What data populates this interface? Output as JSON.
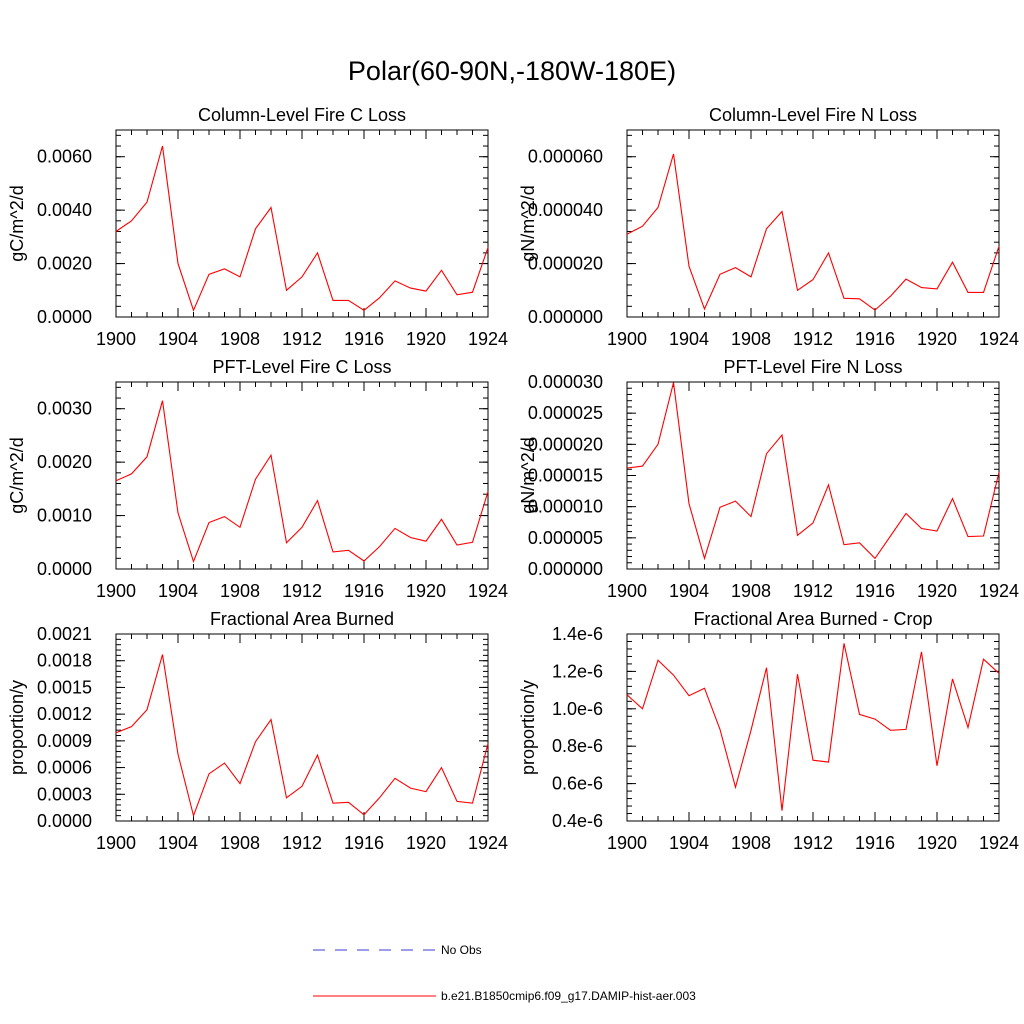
{
  "title": "Polar(60-90N,-180W-180E)",
  "colors": {
    "model_line": "#ff0000",
    "obs_line": "#3b3bd6",
    "axes": "#000000"
  },
  "legend": {
    "obs_label": "No Obs",
    "model_label": "b.e21.B1850cmip6.f09_g17.DAMIP-hist-aer.003"
  },
  "chart_data": [
    {
      "type": "line",
      "title": "Column-Level Fire C Loss",
      "ylabel": "gC/m^2/d",
      "xlim": [
        1900,
        1924
      ],
      "ylim": [
        0,
        0.007
      ],
      "xticks": [
        "1900",
        "1904",
        "1908",
        "1912",
        "1916",
        "1920",
        "1924"
      ],
      "yticks": [
        "0.0000",
        "0.0020",
        "0.0040",
        "0.0060"
      ],
      "x": [
        1900,
        1901,
        1902,
        1903,
        1904,
        1905,
        1906,
        1907,
        1908,
        1909,
        1910,
        1911,
        1912,
        1913,
        1914,
        1915,
        1916,
        1917,
        1918,
        1919,
        1920,
        1921,
        1922,
        1923,
        1924
      ],
      "series": [
        {
          "values": [
            0.0032,
            0.0036,
            0.0043,
            0.0064,
            0.002,
            0.00025,
            0.0016,
            0.0018,
            0.0015,
            0.0033,
            0.0041,
            0.001,
            0.0015,
            0.0024,
            0.00062,
            0.00062,
            0.00025,
            0.00072,
            0.00135,
            0.00108,
            0.00097,
            0.00175,
            0.00083,
            0.00093,
            0.0026
          ]
        }
      ]
    },
    {
      "type": "line",
      "title": "Column-Level Fire N Loss",
      "ylabel": "gN/m^2/d",
      "xlim": [
        1900,
        1924
      ],
      "ylim": [
        0,
        7e-05
      ],
      "xticks": [
        "1900",
        "1904",
        "1908",
        "1912",
        "1916",
        "1920",
        "1924"
      ],
      "yticks": [
        "0.000000",
        "0.000020",
        "0.000040",
        "0.000060"
      ],
      "x": [
        1900,
        1901,
        1902,
        1903,
        1904,
        1905,
        1906,
        1907,
        1908,
        1909,
        1910,
        1911,
        1912,
        1913,
        1914,
        1915,
        1916,
        1917,
        1918,
        1919,
        1920,
        1921,
        1922,
        1923,
        1924
      ],
      "series": [
        {
          "values": [
            3.1e-05,
            3.4e-05,
            4.1e-05,
            6.1e-05,
            1.9e-05,
            3e-06,
            1.6e-05,
            1.85e-05,
            1.5e-05,
            3.3e-05,
            3.95e-05,
            1e-05,
            1.4e-05,
            2.4e-05,
            7e-06,
            6.8e-06,
            2.6e-06,
            7.8e-06,
            1.42e-05,
            1.1e-05,
            1.05e-05,
            2.05e-05,
            9.2e-06,
            9.2e-06,
            2.65e-05
          ]
        }
      ]
    },
    {
      "type": "line",
      "title": "PFT-Level Fire C Loss",
      "ylabel": "gC/m^2/d",
      "xlim": [
        1900,
        1924
      ],
      "ylim": [
        0,
        0.0035
      ],
      "xticks": [
        "1900",
        "1904",
        "1908",
        "1912",
        "1916",
        "1920",
        "1924"
      ],
      "yticks": [
        "0.0000",
        "0.0010",
        "0.0020",
        "0.0030"
      ],
      "x": [
        1900,
        1901,
        1902,
        1903,
        1904,
        1905,
        1906,
        1907,
        1908,
        1909,
        1910,
        1911,
        1912,
        1913,
        1914,
        1915,
        1916,
        1917,
        1918,
        1919,
        1920,
        1921,
        1922,
        1923,
        1924
      ],
      "series": [
        {
          "values": [
            0.00165,
            0.00178,
            0.0021,
            0.00315,
            0.00105,
            0.00014,
            0.00087,
            0.00098,
            0.00078,
            0.00168,
            0.00213,
            0.00049,
            0.00078,
            0.00128,
            0.00032,
            0.00035,
            0.00015,
            0.00042,
            0.00076,
            0.00059,
            0.00052,
            0.00093,
            0.00045,
            0.0005,
            0.00145
          ]
        }
      ]
    },
    {
      "type": "line",
      "title": "PFT-Level Fire N Loss",
      "ylabel": "gN/m^2/d",
      "xlim": [
        1900,
        1924
      ],
      "ylim": [
        0,
        3e-05
      ],
      "xticks": [
        "1900",
        "1904",
        "1908",
        "1912",
        "1916",
        "1920",
        "1924"
      ],
      "yticks": [
        "0.000000",
        "0.000005",
        "0.000010",
        "0.000015",
        "0.000020",
        "0.000025",
        "0.000030"
      ],
      "x": [
        1900,
        1901,
        1902,
        1903,
        1904,
        1905,
        1906,
        1907,
        1908,
        1909,
        1910,
        1911,
        1912,
        1913,
        1914,
        1915,
        1916,
        1917,
        1918,
        1919,
        1920,
        1921,
        1922,
        1923,
        1924
      ],
      "series": [
        {
          "values": [
            1.62e-05,
            1.65e-05,
            2e-05,
            2.99e-05,
            1.05e-05,
            1.7e-06,
            9.9e-06,
            1.09e-05,
            8.4e-06,
            1.85e-05,
            2.15e-05,
            5.4e-06,
            7.4e-06,
            1.35e-05,
            3.9e-06,
            4.2e-06,
            1.7e-06,
            5.3e-06,
            8.9e-06,
            6.5e-06,
            6.1e-06,
            1.13e-05,
            5.2e-06,
            5.3e-06,
            1.55e-05
          ]
        }
      ]
    },
    {
      "type": "line",
      "title": "Fractional Area Burned",
      "ylabel": "proportion/y",
      "xlim": [
        1900,
        1924
      ],
      "ylim": [
        0,
        0.0021
      ],
      "xticks": [
        "1900",
        "1904",
        "1908",
        "1912",
        "1916",
        "1920",
        "1924"
      ],
      "yticks": [
        "0.0000",
        "0.0003",
        "0.0006",
        "0.0009",
        "0.0012",
        "0.0015",
        "0.0018",
        "0.0021"
      ],
      "x": [
        1900,
        1901,
        1902,
        1903,
        1904,
        1905,
        1906,
        1907,
        1908,
        1909,
        1910,
        1911,
        1912,
        1913,
        1914,
        1915,
        1916,
        1917,
        1918,
        1919,
        1920,
        1921,
        1922,
        1923,
        1924
      ],
      "series": [
        {
          "values": [
            0.00099,
            0.00106,
            0.00125,
            0.00187,
            0.00075,
            6e-05,
            0.00053,
            0.00065,
            0.00042,
            0.00089,
            0.00114,
            0.00026,
            0.00039,
            0.00074,
            0.0002,
            0.00021,
            7e-05,
            0.00026,
            0.00048,
            0.00037,
            0.00033,
            0.0006,
            0.00022,
            0.0002,
            0.00087
          ]
        }
      ]
    },
    {
      "type": "line",
      "title": "Fractional Area Burned - Crop",
      "ylabel": "proportion/y",
      "xlim": [
        1900,
        1924
      ],
      "ylim": [
        4e-07,
        1.4e-06
      ],
      "xticks": [
        "1900",
        "1904",
        "1908",
        "1912",
        "1916",
        "1920",
        "1924"
      ],
      "yticks": [
        "0.4e-6",
        "0.6e-6",
        "0.8e-6",
        "1.0e-6",
        "1.2e-6",
        "1.4e-6"
      ],
      "x": [
        1900,
        1901,
        1902,
        1903,
        1904,
        1905,
        1906,
        1907,
        1908,
        1909,
        1910,
        1911,
        1912,
        1913,
        1914,
        1915,
        1916,
        1917,
        1918,
        1919,
        1920,
        1921,
        1922,
        1923,
        1924
      ],
      "series": [
        {
          "values": [
            1.075e-06,
            1e-06,
            1.26e-06,
            1.18e-06,
            1.07e-06,
            1.11e-06,
            8.9e-07,
            5.8e-07,
            8.85e-07,
            1.22e-06,
            4.55e-07,
            1.185e-06,
            7.25e-07,
            7.15e-07,
            1.35e-06,
            9.7e-07,
            9.45e-07,
            8.85e-07,
            8.9e-07,
            1.305e-06,
            6.95e-07,
            1.16e-06,
            9e-07,
            1.265e-06,
            1.19e-06
          ]
        }
      ]
    }
  ]
}
